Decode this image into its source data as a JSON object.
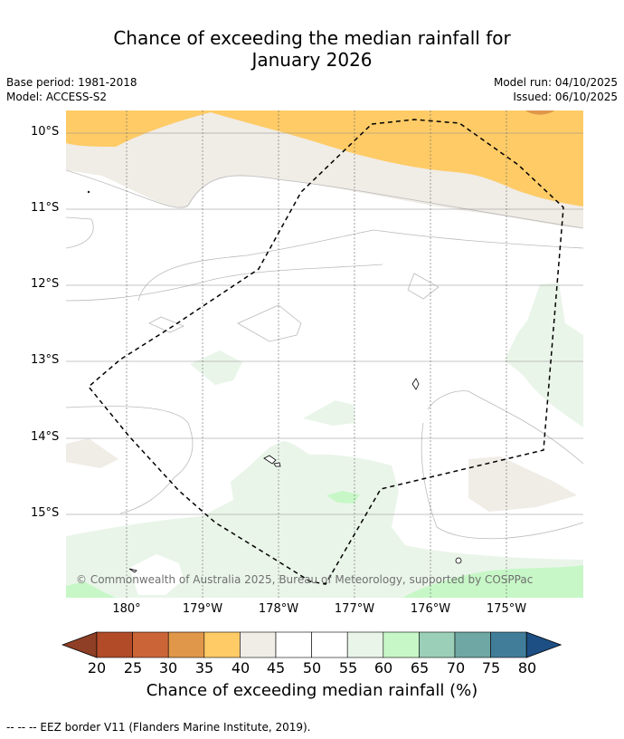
{
  "title_line1": "Chance of exceeding the median rainfall for",
  "title_line2": "January 2026",
  "meta": {
    "base_period": "Base period: 1981-2018",
    "model": "Model: ACCESS-S2",
    "model_run": "Model run: 04/10/2025",
    "issued": "Issued: 06/10/2025"
  },
  "map": {
    "lat_labels": [
      "10°S",
      "11°S",
      "12°S",
      "13°S",
      "14°S",
      "15°S"
    ],
    "lon_labels": [
      "180°",
      "179°W",
      "178°W",
      "177°W",
      "176°W",
      "175°W"
    ],
    "copyright": "© Commonwealth of Australia 2025, Bureau of Meteorology, supported by COSPPac"
  },
  "colorbar": {
    "ticks": [
      "20",
      "25",
      "30",
      "35",
      "40",
      "45",
      "50",
      "55",
      "60",
      "65",
      "70",
      "75",
      "80"
    ],
    "title": "Chance of exceeding median rainfall (%)",
    "colors": [
      "#8f3f25",
      "#b24b28",
      "#cb6537",
      "#e09749",
      "#fecb66",
      "#f0ece6",
      "#ffffff",
      "#ffffff",
      "#eaf5ea",
      "#c7f7c7",
      "#9ccfb8",
      "#6ea7a3",
      "#417d99",
      "#1d4f84"
    ]
  },
  "footer": "--  --  -- EEZ border V11 (Flanders Marine Institute, 2019)."
}
